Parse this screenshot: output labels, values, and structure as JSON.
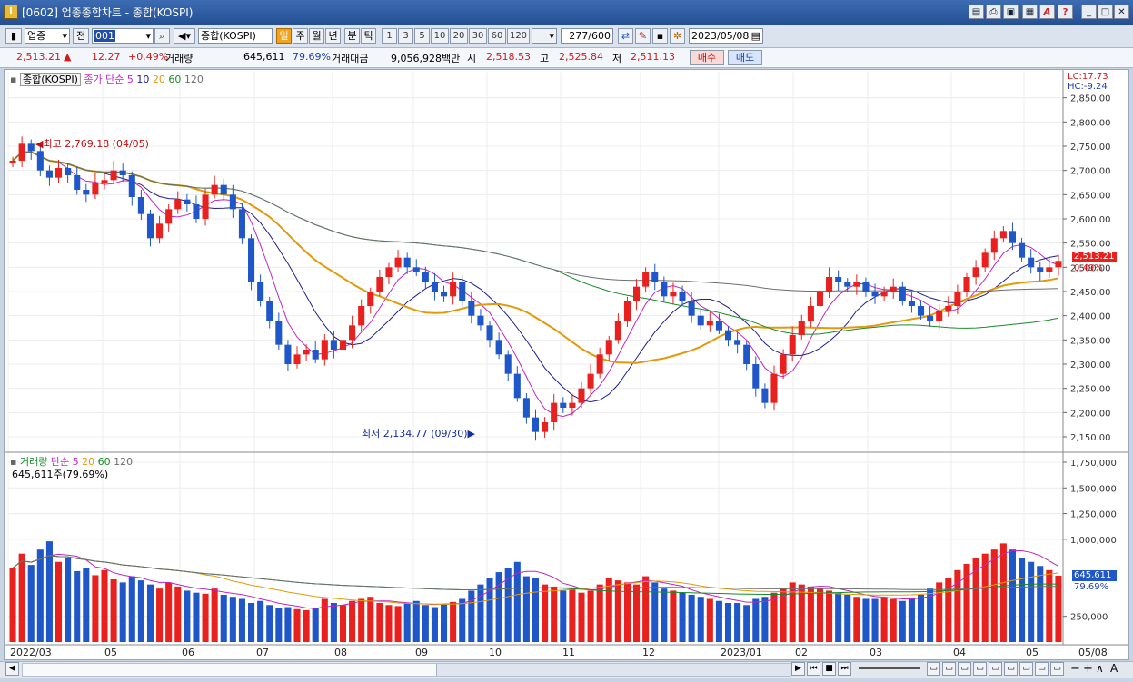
{
  "window": {
    "title": "[0602] 업종종합차트 - 종합(KOSPI)"
  },
  "titlebar_buttons": [
    "layout-icon",
    "print-icon",
    "save-icon",
    "window-icon",
    "font-icon",
    "help-icon",
    "minimize-icon",
    "maximize-icon",
    "close-icon"
  ],
  "toolbar": {
    "market": "업종",
    "market2": "전",
    "code": "001",
    "name": "종합(KOSPI)",
    "periods": [
      "일",
      "주",
      "월",
      "년",
      "분",
      "틱"
    ],
    "selected_period": "일",
    "minutes": [
      "1",
      "3",
      "5",
      "10",
      "20",
      "30",
      "60",
      "120"
    ],
    "count": "277",
    "count_total": "/600",
    "date": "2023/05/08"
  },
  "quote": {
    "price": "2,513.21",
    "arrow": "▲",
    "change": "12.27",
    "change_pct": "+0.49%",
    "volume_label": "거래량",
    "volume": "645,611",
    "volume_ratio": "79.69%",
    "amount_label": "거래대금",
    "amount": "9,056,928백만",
    "open_label": "시",
    "open": "2,518.53",
    "high_label": "고",
    "high": "2,525.84",
    "low_label": "저",
    "low": "2,511.13",
    "buy": "매수",
    "sell": "매도"
  },
  "price_panel": {
    "legend_name": "종합(KOSPI)",
    "legend_ma": "종가 단순 5",
    "ma_labels": [
      "10",
      "20",
      "60",
      "120"
    ],
    "lc": "LC:17.73",
    "hc": "HC:-9.24",
    "current_price": "2,513.21",
    "current_pct": "0.49%",
    "high_note": "최고 2,769.18 (04/05)",
    "low_note": "최저 2,134.77 (09/30)",
    "y_ticks": [
      "2,850.00",
      "2,800.00",
      "2,750.00",
      "2,700.00",
      "2,650.00",
      "2,600.00",
      "2,550.00",
      "2,500.00",
      "2,450.00",
      "2,400.00",
      "2,350.00",
      "2,300.00",
      "2,250.00",
      "2,200.00",
      "2,150.00"
    ]
  },
  "volume_panel": {
    "legend_name": "거래량",
    "legend_ma": "단순 5",
    "ma_labels": [
      "20",
      "60",
      "120"
    ],
    "info": "645,611주(79.69%)",
    "current": "645,611",
    "current_pct": "79.69%",
    "y_ticks": [
      "1,750,000",
      "1,500,000",
      "1,250,000",
      "1,000,000",
      "250,000"
    ]
  },
  "x_labels": [
    "2022/03",
    "05",
    "06",
    "07",
    "08",
    "09",
    "10",
    "11",
    "12",
    "2023/01",
    "02",
    "03",
    "04",
    "05",
    "05/08"
  ],
  "colors": {
    "up": "#e8201e",
    "down": "#1f57c8",
    "ma5": "#c027c0",
    "ma10": "#20208a",
    "ma20": "#e39a0a",
    "ma60": "#1a8a2a",
    "ma120": "#6e6e6e"
  },
  "chart_data": {
    "type": "candlestick",
    "title": "종합(KOSPI)",
    "ylim": [
      2120,
      2870
    ],
    "vol_ylim": [
      0,
      1750000
    ],
    "series_names": [
      "종가 단순 5",
      "10",
      "20",
      "60",
      "120"
    ],
    "closes": [
      2720,
      2755,
      2740,
      2700,
      2685,
      2705,
      2690,
      2660,
      2650,
      2675,
      2680,
      2700,
      2690,
      2645,
      2610,
      2560,
      2590,
      2620,
      2640,
      2630,
      2600,
      2650,
      2670,
      2650,
      2620,
      2560,
      2470,
      2430,
      2390,
      2340,
      2300,
      2320,
      2330,
      2310,
      2350,
      2330,
      2350,
      2380,
      2420,
      2450,
      2480,
      2500,
      2520,
      2500,
      2490,
      2470,
      2450,
      2440,
      2470,
      2430,
      2400,
      2380,
      2350,
      2320,
      2280,
      2230,
      2190,
      2160,
      2180,
      2220,
      2210,
      2220,
      2250,
      2280,
      2320,
      2350,
      2390,
      2430,
      2460,
      2490,
      2470,
      2440,
      2450,
      2430,
      2400,
      2380,
      2390,
      2370,
      2350,
      2340,
      2300,
      2250,
      2220,
      2280,
      2320,
      2360,
      2390,
      2420,
      2450,
      2480,
      2470,
      2460,
      2470,
      2450,
      2440,
      2450,
      2460,
      2430,
      2420,
      2400,
      2390,
      2410,
      2420,
      2450,
      2480,
      2500,
      2530,
      2560,
      2575,
      2550,
      2520,
      2500,
      2490,
      2500,
      2513.21
    ],
    "volumes": [
      720000,
      860000,
      750000,
      900000,
      980000,
      780000,
      820000,
      690000,
      720000,
      650000,
      700000,
      610000,
      580000,
      640000,
      600000,
      560000,
      520000,
      580000,
      540000,
      500000,
      480000,
      470000,
      520000,
      460000,
      440000,
      420000,
      380000,
      400000,
      360000,
      330000,
      340000,
      320000,
      310000,
      330000,
      420000,
      380000,
      360000,
      400000,
      420000,
      440000,
      380000,
      360000,
      350000,
      380000,
      400000,
      360000,
      340000,
      370000,
      390000,
      420000,
      500000,
      560000,
      620000,
      680000,
      720000,
      780000,
      640000,
      620000,
      560000,
      540000,
      500000,
      520000,
      480000,
      500000,
      560000,
      620000,
      600000,
      580000,
      560000,
      640000,
      580000,
      520000,
      500000,
      480000,
      460000,
      440000,
      420000,
      400000,
      380000,
      380000,
      360000,
      420000,
      440000,
      480000,
      520000,
      580000,
      560000,
      540000,
      520000,
      500000,
      480000,
      460000,
      440000,
      420000,
      420000,
      440000,
      420000,
      400000,
      420000,
      460000,
      520000,
      580000,
      620000,
      700000,
      760000,
      820000,
      860000,
      900000,
      960000,
      900000,
      820000,
      780000,
      740000,
      700000,
      645611
    ]
  }
}
